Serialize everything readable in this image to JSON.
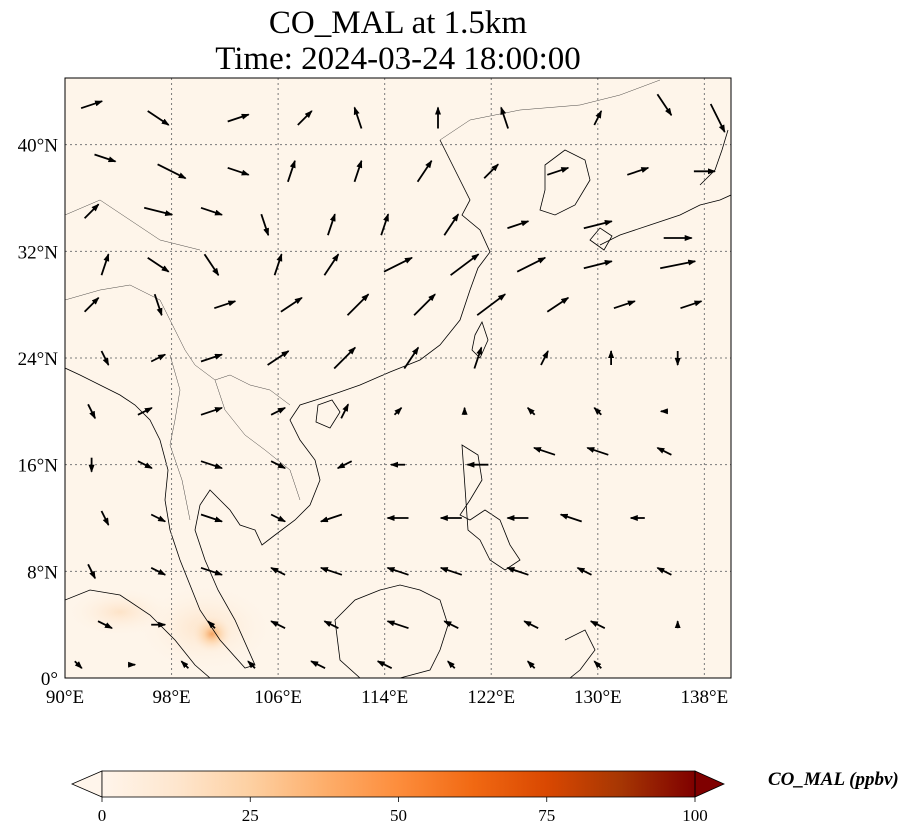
{
  "title": {
    "line1": "CO_MAL at 1.5km",
    "line2": "Time: 2024-03-24 18:00:00"
  },
  "map": {
    "extent": {
      "lon": [
        90,
        140
      ],
      "lat": [
        0,
        45
      ]
    },
    "x_ticks": [
      {
        "value": 90,
        "label": "90°E"
      },
      {
        "value": 98,
        "label": "98°E"
      },
      {
        "value": 106,
        "label": "106°E"
      },
      {
        "value": 114,
        "label": "114°E"
      },
      {
        "value": 122,
        "label": "122°E"
      },
      {
        "value": 130,
        "label": "130°E"
      },
      {
        "value": 138,
        "label": "138°E"
      }
    ],
    "y_ticks": [
      {
        "value": 0,
        "label": "0°"
      },
      {
        "value": 8,
        "label": "8°N"
      },
      {
        "value": 16,
        "label": "16°N"
      },
      {
        "value": 24,
        "label": "24°N"
      },
      {
        "value": 32,
        "label": "32°N"
      },
      {
        "value": 40,
        "label": "40°N"
      }
    ],
    "grid": true,
    "background_color": "#fef5ea",
    "plume": {
      "lon": 101.2,
      "lat": 3.2,
      "peak_ppbv": 30
    }
  },
  "colorbar": {
    "label": "CO_MAL (ppbv)",
    "range": [
      0,
      100
    ],
    "extend": "both",
    "ticks": [
      {
        "value": 0,
        "label": "0"
      },
      {
        "value": 25,
        "label": "25"
      },
      {
        "value": 50,
        "label": "50"
      },
      {
        "value": 75,
        "label": "75"
      },
      {
        "value": 100,
        "label": "100"
      }
    ],
    "colors": [
      "#fff5eb",
      "#fee6ce",
      "#fdd0a2",
      "#fdae6b",
      "#fd8d3c",
      "#f16913",
      "#d94801",
      "#a63603",
      "#7f0000"
    ]
  },
  "wind_vectors": [
    [
      92,
      43,
      3,
      1
    ],
    [
      97,
      42,
      3,
      -2
    ],
    [
      103,
      42,
      3,
      1
    ],
    [
      108,
      42,
      2,
      2
    ],
    [
      112,
      42,
      -1,
      3
    ],
    [
      118,
      42,
      0,
      3
    ],
    [
      123,
      42,
      -1,
      3
    ],
    [
      130,
      42,
      1,
      2
    ],
    [
      135,
      43,
      2,
      -3
    ],
    [
      139,
      42,
      2,
      -4
    ],
    [
      93,
      39,
      3,
      -1
    ],
    [
      98,
      38,
      4,
      -2
    ],
    [
      103,
      38,
      3,
      -1
    ],
    [
      107,
      38,
      1,
      3
    ],
    [
      112,
      38,
      1,
      3
    ],
    [
      117,
      38,
      2,
      3
    ],
    [
      122,
      38,
      2,
      2
    ],
    [
      127,
      38,
      3,
      1
    ],
    [
      133,
      38,
      3,
      1
    ],
    [
      138,
      38,
      3,
      0
    ],
    [
      92,
      35,
      2,
      2
    ],
    [
      97,
      35,
      4,
      -1
    ],
    [
      101,
      35,
      3,
      -1
    ],
    [
      105,
      34,
      1,
      -3
    ],
    [
      110,
      34,
      1,
      3
    ],
    [
      114,
      34,
      1,
      3
    ],
    [
      119,
      34,
      2,
      3
    ],
    [
      124,
      34,
      3,
      1
    ],
    [
      130,
      34,
      4,
      1
    ],
    [
      136,
      33,
      4,
      0
    ],
    [
      93,
      31,
      1,
      3
    ],
    [
      97,
      31,
      3,
      -2
    ],
    [
      101,
      31,
      2,
      -3
    ],
    [
      106,
      31,
      1,
      3
    ],
    [
      110,
      31,
      2,
      3
    ],
    [
      115,
      31,
      4,
      2
    ],
    [
      120,
      31,
      4,
      3
    ],
    [
      125,
      31,
      4,
      2
    ],
    [
      130,
      31,
      4,
      1
    ],
    [
      136,
      31,
      5,
      1
    ],
    [
      92,
      28,
      2,
      2
    ],
    [
      97,
      28,
      1,
      -3
    ],
    [
      102,
      28,
      3,
      1
    ],
    [
      107,
      28,
      3,
      2
    ],
    [
      112,
      28,
      3,
      3
    ],
    [
      117,
      28,
      3,
      3
    ],
    [
      122,
      28,
      4,
      3
    ],
    [
      127,
      28,
      3,
      2
    ],
    [
      132,
      28,
      3,
      1
    ],
    [
      137,
      28,
      3,
      1
    ],
    [
      93,
      24,
      1,
      -2
    ],
    [
      97,
      24,
      2,
      1
    ],
    [
      101,
      24,
      3,
      1
    ],
    [
      106,
      24,
      3,
      2
    ],
    [
      111,
      24,
      3,
      3
    ],
    [
      116,
      24,
      2,
      3
    ],
    [
      121,
      24,
      1,
      3
    ],
    [
      126,
      24,
      1,
      2
    ],
    [
      131,
      24,
      0,
      2
    ],
    [
      136,
      24,
      0,
      -2
    ],
    [
      92,
      20,
      1,
      -2
    ],
    [
      96,
      20,
      2,
      1
    ],
    [
      101,
      20,
      3,
      1
    ],
    [
      106,
      20,
      2,
      1
    ],
    [
      111,
      20,
      1,
      2
    ],
    [
      115,
      20,
      1,
      1
    ],
    [
      120,
      20,
      0,
      1
    ],
    [
      125,
      20,
      -1,
      1
    ],
    [
      130,
      20,
      -1,
      1
    ],
    [
      135,
      20,
      -1,
      0
    ],
    [
      92,
      16,
      0,
      -2
    ],
    [
      96,
      16,
      2,
      -1
    ],
    [
      101,
      16,
      3,
      -1
    ],
    [
      106,
      16,
      2,
      -1
    ],
    [
      111,
      16,
      -2,
      -1
    ],
    [
      115,
      16,
      -2,
      0
    ],
    [
      121,
      16,
      -3,
      0
    ],
    [
      126,
      17,
      -3,
      1
    ],
    [
      130,
      17,
      -3,
      1
    ],
    [
      135,
      17,
      -2,
      1
    ],
    [
      93,
      12,
      1,
      -2
    ],
    [
      97,
      12,
      2,
      -1
    ],
    [
      101,
      12,
      3,
      -1
    ],
    [
      106,
      12,
      2,
      -1
    ],
    [
      110,
      12,
      -3,
      -1
    ],
    [
      115,
      12,
      -3,
      0
    ],
    [
      119,
      12,
      -3,
      0
    ],
    [
      124,
      12,
      -3,
      0
    ],
    [
      128,
      12,
      -3,
      1
    ],
    [
      133,
      12,
      -2,
      0
    ],
    [
      92,
      8,
      1,
      -2
    ],
    [
      97,
      8,
      2,
      -1
    ],
    [
      101,
      8,
      3,
      -1
    ],
    [
      106,
      8,
      -2,
      1
    ],
    [
      110,
      8,
      -3,
      1
    ],
    [
      115,
      8,
      -3,
      1
    ],
    [
      119,
      8,
      -3,
      1
    ],
    [
      124,
      8,
      -3,
      1
    ],
    [
      129,
      8,
      -2,
      1
    ],
    [
      135,
      8,
      -2,
      1
    ],
    [
      93,
      4,
      2,
      -1
    ],
    [
      97,
      4,
      2,
      0
    ],
    [
      101,
      4,
      -1,
      1
    ],
    [
      106,
      4,
      -2,
      1
    ],
    [
      110,
      4,
      -2,
      1
    ],
    [
      115,
      4,
      -3,
      1
    ],
    [
      119,
      4,
      -2,
      1
    ],
    [
      125,
      4,
      -2,
      1
    ],
    [
      130,
      4,
      -2,
      1
    ],
    [
      136,
      4,
      0,
      1
    ],
    [
      91,
      1,
      1,
      -1
    ],
    [
      95,
      1,
      1,
      0
    ],
    [
      99,
      1,
      -1,
      1
    ],
    [
      104,
      1,
      -1,
      1
    ],
    [
      109,
      1,
      -2,
      1
    ],
    [
      114,
      1,
      -2,
      1
    ],
    [
      119,
      1,
      -1,
      1
    ],
    [
      125,
      1,
      -1,
      1
    ],
    [
      130,
      1,
      -1,
      1
    ]
  ]
}
